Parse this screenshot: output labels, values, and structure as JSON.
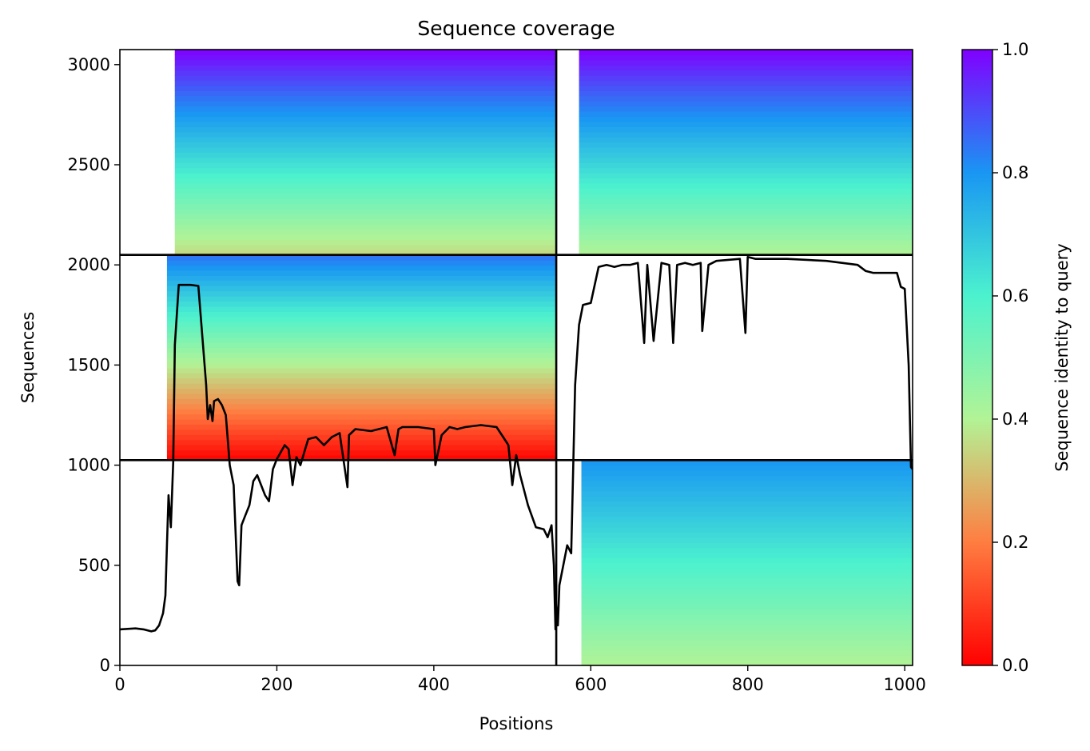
{
  "chart_data": {
    "type": "heatmap",
    "title": "Sequence coverage",
    "xlabel": "Positions",
    "ylabel": "Sequences",
    "xlim": [
      0,
      1010
    ],
    "ylim": [
      0,
      3075
    ],
    "xticks": [
      0,
      200,
      400,
      600,
      800,
      1000
    ],
    "yticks": [
      0,
      500,
      1000,
      1500,
      2000,
      2500,
      3000
    ],
    "colorbar": {
      "label": "Sequence identity to query",
      "range": [
        0,
        1
      ],
      "ticks": [
        0.0,
        0.2,
        0.4,
        0.6,
        0.8,
        1.0
      ],
      "tick_labels": [
        "0.0",
        "0.2",
        "0.4",
        "0.6",
        "0.8",
        "1.0"
      ],
      "colormap": "rainbow_r",
      "colors": [
        "#ff0000",
        "#ff7d41",
        "#b2f396",
        "#4cf2ce",
        "#1996f3",
        "#8000ff"
      ]
    },
    "dividers": {
      "vertical_x": [
        556
      ],
      "horizontal_y": [
        1025,
        2050
      ]
    },
    "blocks": [
      {
        "x": [
          0,
          556
        ],
        "y": [
          2050,
          3075
        ],
        "identity_range": [
          0.35,
          1.0
        ],
        "coverage_start": 70
      },
      {
        "x": [
          556,
          1010
        ],
        "y": [
          2050,
          3075
        ],
        "identity_range": [
          0.4,
          1.0
        ],
        "coverage_start": 585
      },
      {
        "x": [
          0,
          556
        ],
        "y": [
          1025,
          2050
        ],
        "identity_range": [
          0.0,
          0.85
        ],
        "coverage_start": 60
      },
      {
        "x": [
          556,
          1010
        ],
        "y": [
          0,
          1025
        ],
        "identity_range": [
          0.4,
          0.8
        ],
        "coverage_start": 588
      }
    ],
    "coverage_line": {
      "x": [
        0,
        20,
        30,
        40,
        45,
        50,
        55,
        58,
        60,
        62,
        65,
        68,
        70,
        75,
        80,
        90,
        100,
        110,
        112,
        115,
        118,
        120,
        125,
        130,
        135,
        140,
        145,
        150,
        152,
        155,
        160,
        165,
        170,
        175,
        180,
        185,
        190,
        195,
        200,
        210,
        215,
        220,
        225,
        230,
        240,
        250,
        260,
        270,
        280,
        290,
        292,
        300,
        320,
        340,
        350,
        355,
        360,
        380,
        400,
        402,
        410,
        420,
        430,
        440,
        460,
        480,
        490,
        495,
        500,
        505,
        510,
        520,
        530,
        540,
        545,
        550,
        553,
        555,
        556,
        558,
        560,
        565,
        570,
        575,
        580,
        585,
        590,
        600,
        610,
        620,
        630,
        640,
        650,
        660,
        668,
        672,
        680,
        690,
        700,
        705,
        710,
        720,
        730,
        740,
        742,
        750,
        760,
        790,
        797,
        800,
        810,
        850,
        900,
        940,
        950,
        960,
        990,
        995,
        1000,
        1005,
        1008,
        1010
      ],
      "y": [
        180,
        185,
        180,
        170,
        175,
        200,
        260,
        350,
        600,
        850,
        690,
        1020,
        1600,
        1900,
        1900,
        1900,
        1895,
        1400,
        1230,
        1300,
        1220,
        1320,
        1330,
        1300,
        1250,
        1000,
        900,
        420,
        400,
        700,
        750,
        800,
        920,
        950,
        900,
        850,
        820,
        980,
        1030,
        1100,
        1080,
        900,
        1040,
        1000,
        1130,
        1140,
        1100,
        1140,
        1160,
        890,
        1150,
        1180,
        1170,
        1190,
        1050,
        1180,
        1190,
        1190,
        1180,
        1000,
        1150,
        1190,
        1180,
        1190,
        1200,
        1190,
        1130,
        1100,
        900,
        1050,
        950,
        800,
        690,
        680,
        640,
        700,
        500,
        180,
        300,
        200,
        400,
        500,
        600,
        560,
        1400,
        1700,
        1800,
        1810,
        1990,
        2000,
        1990,
        2000,
        2000,
        2010,
        1610,
        2000,
        1620,
        2010,
        2000,
        1610,
        2000,
        2010,
        2000,
        2010,
        1670,
        2000,
        2020,
        2030,
        1660,
        2040,
        2030,
        2030,
        2020,
        2000,
        1970,
        1960,
        1960,
        1890,
        1880,
        1500,
        990,
        980
      ]
    }
  }
}
